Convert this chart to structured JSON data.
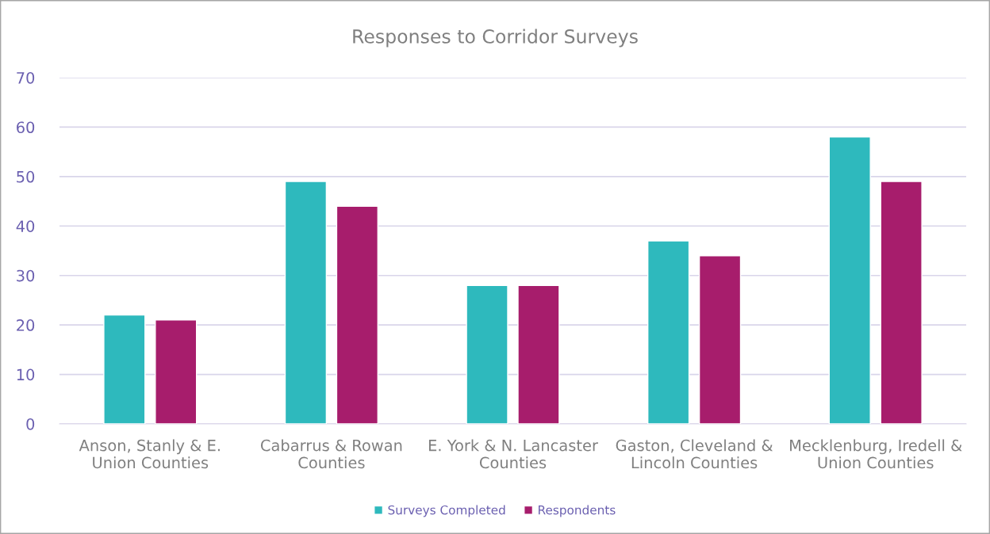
{
  "chart_data": {
    "type": "bar",
    "title": "Responses to Corridor Surveys",
    "categories": [
      "Anson, Stanly & E.\nUnion Counties",
      "Cabarrus & Rowan\nCounties",
      "E. York & N. Lancaster\nCounties",
      "Gaston, Cleveland &\nLincoln Counties",
      "Mecklenburg, Iredell &\nUnion Counties"
    ],
    "series": [
      {
        "name": "Surveys Completed",
        "color": "#2eb9bd",
        "values": [
          22,
          49,
          28,
          37,
          58
        ]
      },
      {
        "name": "Respondents",
        "color": "#a71d6c",
        "values": [
          21,
          44,
          28,
          34,
          49
        ]
      }
    ],
    "ylim": [
      0,
      70
    ],
    "yticks": [
      0,
      10,
      20,
      30,
      40,
      50,
      60,
      70
    ],
    "grid": "y",
    "legend": "bottom"
  }
}
